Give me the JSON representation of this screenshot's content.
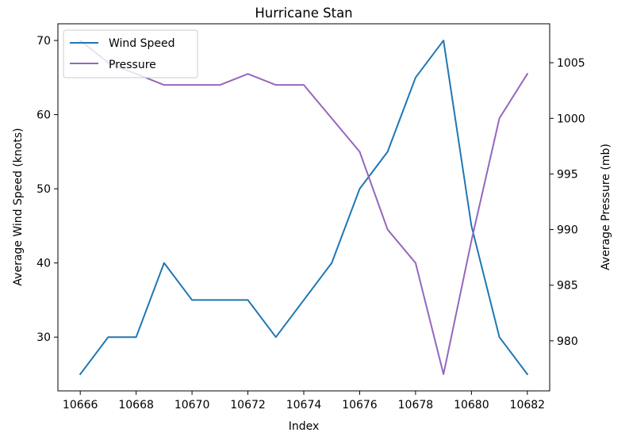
{
  "chart_data": {
    "type": "line",
    "title": "Hurricane Stan",
    "xlabel": "Index",
    "ylabel_left": "Average Wind Speed (knots)",
    "ylabel_right": "Average Pressure (mb)",
    "x": [
      10666,
      10667,
      10668,
      10669,
      10670,
      10671,
      10672,
      10673,
      10674,
      10675,
      10676,
      10677,
      10678,
      10679,
      10680,
      10681,
      10682
    ],
    "x_ticks": [
      10666,
      10668,
      10670,
      10672,
      10674,
      10676,
      10678,
      10680,
      10682
    ],
    "xlim": [
      10665.2,
      10682.8
    ],
    "series": [
      {
        "name": "Wind Speed",
        "axis": "left",
        "color": "#1f77b4",
        "values": [
          25,
          30,
          30,
          40,
          35,
          35,
          35,
          30,
          35,
          40,
          50,
          55,
          65,
          70,
          45,
          30,
          25
        ]
      },
      {
        "name": "Pressure",
        "axis": "right",
        "color": "#9467bd",
        "values": [
          1007,
          1005,
          1004,
          1003,
          1003,
          1003,
          1004,
          1003,
          1003,
          1000,
          997,
          990,
          987,
          977,
          989,
          1000,
          1004
        ]
      }
    ],
    "ylim_left": [
      22.75,
      72.25
    ],
    "yticks_left": [
      30,
      40,
      50,
      60,
      70
    ],
    "ylim_right": [
      975.5,
      1008.5
    ],
    "yticks_right": [
      980,
      985,
      990,
      995,
      1000,
      1005
    ],
    "legend_position": "upper-left",
    "grid": false
  }
}
